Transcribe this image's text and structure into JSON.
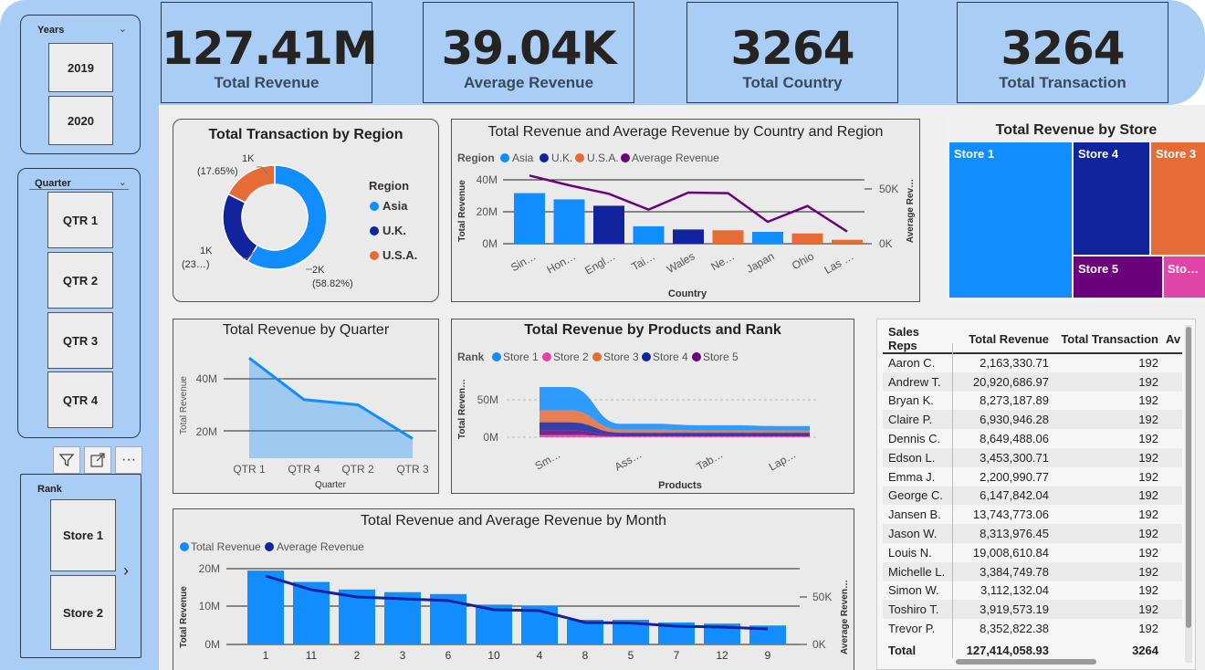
{
  "kpis": [
    {
      "value": "127.41M",
      "label": "Total Revenue"
    },
    {
      "value": "39.04K",
      "label": "Average Revenue"
    },
    {
      "value": "3264",
      "label": "Total Country"
    },
    {
      "value": "3264",
      "label": "Total Transaction"
    }
  ],
  "slicers": {
    "years": {
      "title": "Years",
      "items": [
        "2019",
        "2020"
      ]
    },
    "quarter": {
      "title": "Quarter",
      "items": [
        "QTR 1",
        "QTR 2",
        "QTR 3",
        "QTR 4"
      ]
    },
    "rank": {
      "title": "Rank",
      "items": [
        "Store 1",
        "Store 2"
      ]
    }
  },
  "visual_header": {
    "filter_icon": "filter-icon",
    "focus_icon": "focus-mode-icon",
    "more_icon": "more-options-icon"
  },
  "donut": {
    "title": "Total Transaction by Region",
    "legend_title": "Region",
    "legend": [
      "Asia",
      "U.K.",
      "U.S.A."
    ],
    "labels": [
      {
        "value": "2K",
        "pct": "(58.82%)"
      },
      {
        "value": "1K",
        "pct": "(23…)"
      },
      {
        "value": "1K",
        "pct": "(17.65%)"
      }
    ]
  },
  "country_chart": {
    "title": "Total Revenue and Average Revenue by Country and Region",
    "legend_title": "Region",
    "legend": [
      "Asia",
      "U.K.",
      "U.S.A.",
      "Average Revenue"
    ],
    "y_ticks": [
      "40M",
      "20M",
      "0M"
    ],
    "y2_ticks": [
      "50K",
      "0K"
    ],
    "ylabel": "Total Revenue",
    "y2label": "Average Rev…",
    "xlabel": "Country",
    "x_ticks": [
      "Sin…",
      "Hon…",
      "Engl…",
      "Tai…",
      "Wales",
      "Ne…",
      "Japan",
      "Ohio",
      "Las …"
    ]
  },
  "treemap": {
    "title": "Total Revenue by Store",
    "tiles": [
      "Store 1",
      "Store 4",
      "Store 3",
      "Store 5",
      "Sto…"
    ]
  },
  "quarter_chart": {
    "title": "Total Revenue by Quarter",
    "y_ticks": [
      "40M",
      "20M"
    ],
    "ylabel": "Total Revenue",
    "xlabel": "Quarter",
    "x_ticks": [
      "QTR 1",
      "QTR 4",
      "QTR 2",
      "QTR 3"
    ]
  },
  "products_chart": {
    "title": "Total Revenue by Products and Rank",
    "legend_title": "Rank",
    "legend": [
      "Store 1",
      "Store 2",
      "Store 3",
      "Store 4",
      "Store 5"
    ],
    "y_ticks": [
      "50M",
      "0M"
    ],
    "ylabel": "Total Reven…",
    "xlabel": "Products",
    "x_ticks": [
      "Sm…",
      "Ass…",
      "Tab…",
      "Lap…"
    ]
  },
  "month_chart": {
    "title": "Total Revenue and Average Revenue by Month",
    "legend": [
      "Total Revenue",
      "Average Revenue"
    ],
    "y_ticks": [
      "20M",
      "10M",
      "0M"
    ],
    "y2_ticks": [
      "50K",
      "0K"
    ],
    "ylabel": "Total Revenue",
    "y2label": "Average Reven…",
    "x_ticks": [
      "1",
      "11",
      "2",
      "3",
      "6",
      "10",
      "4",
      "8",
      "5",
      "7",
      "12",
      "9"
    ]
  },
  "table": {
    "headers": [
      "Sales Reps",
      "Total Revenue",
      "Total Transaction",
      "Av"
    ],
    "rows": [
      [
        "Aaron C.",
        "2,163,330.71",
        "192"
      ],
      [
        "Andrew T.",
        "20,920,686.97",
        "192"
      ],
      [
        "Bryan K.",
        "8,273,187.89",
        "192"
      ],
      [
        "Claire P.",
        "6,930,946.28",
        "192"
      ],
      [
        "Dennis C.",
        "8,649,488.06",
        "192"
      ],
      [
        "Edson L.",
        "3,453,300.71",
        "192"
      ],
      [
        "Emma J.",
        "2,200,990.77",
        "192"
      ],
      [
        "George C.",
        "6,147,842.04",
        "192"
      ],
      [
        "Jansen B.",
        "13,743,773.06",
        "192"
      ],
      [
        "Jason W.",
        "8,313,976.45",
        "192"
      ],
      [
        "Louis N.",
        "19,008,610.84",
        "192"
      ],
      [
        "Michelle L.",
        "3,384,749.78",
        "192"
      ],
      [
        "Simon W.",
        "3,112,132.04",
        "192"
      ],
      [
        "Toshiro T.",
        "3,919,573.19",
        "192"
      ],
      [
        "Trevor P.",
        "8,352,822.38",
        "192"
      ]
    ],
    "total": [
      "Total",
      "127,414,058.93",
      "3264"
    ]
  },
  "colors": {
    "asia": "#118dff",
    "uk": "#12239e",
    "usa": "#e66c37",
    "avg": "#6b007b",
    "store2": "#e044a7",
    "panel": "#a9cdf5"
  },
  "chart_data": [
    {
      "type": "pie",
      "title": "Total Transaction by Region",
      "categories": [
        "Asia",
        "U.K.",
        "U.S.A."
      ],
      "values": [
        58.82,
        23.53,
        17.65
      ]
    },
    {
      "type": "bar",
      "title": "Total Revenue and Average Revenue by Country and Region",
      "categories": [
        "Sin…",
        "Hon…",
        "Engl…",
        "Tai…",
        "Wales",
        "Ne…",
        "Japan",
        "Ohio",
        "Las …"
      ],
      "regions": [
        "Asia",
        "Asia",
        "U.K.",
        "Asia",
        "U.K.",
        "U.S.A.",
        "Asia",
        "U.S.A.",
        "U.S.A."
      ],
      "series": [
        {
          "name": "Total Revenue",
          "values": [
            32,
            28,
            24,
            11,
            9,
            8.5,
            7.5,
            6.5,
            2.5
          ]
        },
        {
          "name": "Average Revenue",
          "values": [
            56000,
            48000,
            41000,
            28000,
            42000,
            41500,
            18000,
            31000,
            10000
          ]
        }
      ],
      "ylim": [
        0,
        45
      ],
      "y2lim": [
        0,
        60000
      ]
    },
    {
      "type": "area",
      "title": "Total Revenue by Quarter",
      "categories": [
        "QTR 1",
        "QTR 4",
        "QTR 2",
        "QTR 3"
      ],
      "values": [
        48,
        32,
        30,
        17
      ],
      "ylim": [
        0,
        52
      ]
    },
    {
      "type": "area",
      "title": "Total Revenue by Products and Rank",
      "categories": [
        "Sm…",
        "Ass…",
        "Tab…",
        "Lap…"
      ],
      "series": [
        {
          "name": "Store 1",
          "values": [
            31,
            8,
            7,
            6
          ]
        },
        {
          "name": "Store 3",
          "values": [
            16,
            4,
            3,
            3
          ]
        },
        {
          "name": "Store 4",
          "values": [
            11,
            3,
            3,
            3
          ]
        },
        {
          "name": "Store 5",
          "values": [
            6,
            2,
            2,
            2
          ]
        },
        {
          "name": "Store 2",
          "values": [
            3,
            1,
            1,
            1
          ]
        }
      ],
      "ylim": [
        0,
        80
      ]
    },
    {
      "type": "bar",
      "title": "Total Revenue and Average Revenue by Month",
      "categories": [
        "1",
        "11",
        "2",
        "3",
        "6",
        "10",
        "4",
        "8",
        "5",
        "7",
        "12",
        "9"
      ],
      "series": [
        {
          "name": "Total Revenue",
          "values": [
            19.5,
            16.5,
            14.5,
            13.8,
            13.3,
            10.5,
            10.3,
            6.5,
            6.5,
            5.8,
            5.5,
            5
          ]
        },
        {
          "name": "Average Revenue",
          "values": [
            75000,
            60000,
            52000,
            50000,
            48000,
            38000,
            37000,
            24000,
            23500,
            20000,
            19000,
            17000
          ]
        }
      ],
      "ylim": [
        0,
        22
      ],
      "y2lim": [
        0,
        85000
      ]
    },
    {
      "type": "treemap",
      "title": "Total Revenue by Store",
      "categories": [
        "Store 1",
        "Store 4",
        "Store 3",
        "Store 5",
        "Sto…"
      ]
    }
  ]
}
